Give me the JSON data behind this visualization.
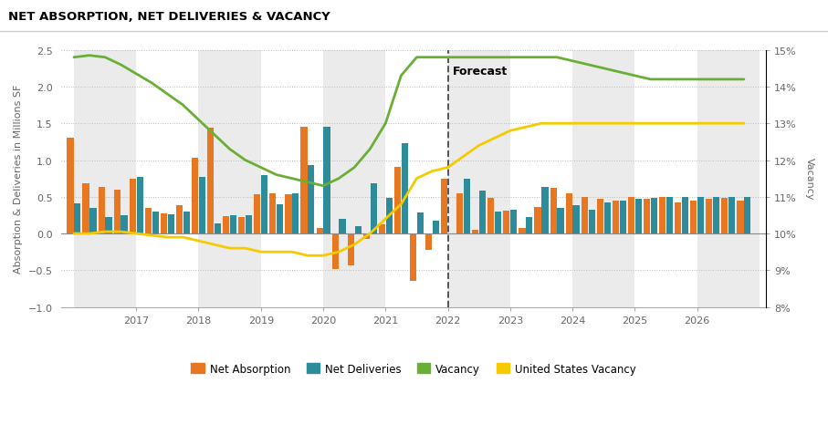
{
  "title": "NET ABSORPTION, NET DELIVERIES & VACANCY",
  "ylabel_left": "Absorption & Deliveries in Millions SF",
  "ylabel_right": "Vacancy",
  "ylim_left": [
    -1.0,
    2.5
  ],
  "ylim_right": [
    0.08,
    0.15
  ],
  "background_color": "#ffffff",
  "stripe_color": "#ebebeb",
  "forecast_x": 2022.0,
  "quarters": [
    2016.0,
    2016.25,
    2016.5,
    2016.75,
    2017.0,
    2017.25,
    2017.5,
    2017.75,
    2018.0,
    2018.25,
    2018.5,
    2018.75,
    2019.0,
    2019.25,
    2019.5,
    2019.75,
    2020.0,
    2020.25,
    2020.5,
    2020.75,
    2021.0,
    2021.25,
    2021.5,
    2021.75,
    2022.0,
    2022.25,
    2022.5,
    2022.75,
    2023.0,
    2023.25,
    2023.5,
    2023.75,
    2024.0,
    2024.25,
    2024.5,
    2024.75,
    2025.0,
    2025.25,
    2025.5,
    2025.75,
    2026.0,
    2026.25,
    2026.5,
    2026.75
  ],
  "net_absorption": [
    1.3,
    0.68,
    0.63,
    0.6,
    0.75,
    0.35,
    0.27,
    0.38,
    1.03,
    1.44,
    0.24,
    0.23,
    0.53,
    0.55,
    0.53,
    1.45,
    0.07,
    -0.48,
    -0.44,
    -0.07,
    0.12,
    0.91,
    -0.64,
    -0.22,
    0.75,
    0.55,
    0.05,
    0.49,
    0.31,
    0.07,
    0.36,
    0.62,
    0.55,
    0.5,
    0.47,
    0.45,
    0.5,
    0.47,
    0.5,
    0.42,
    0.45,
    0.47,
    0.48,
    0.45
  ],
  "net_deliveries": [
    0.41,
    0.35,
    0.23,
    0.25,
    0.77,
    0.3,
    0.26,
    0.3,
    0.77,
    0.14,
    0.25,
    0.25,
    0.8,
    0.4,
    0.55,
    0.93,
    1.45,
    0.2,
    0.1,
    0.68,
    0.48,
    1.23,
    0.28,
    0.18,
    0.0,
    0.75,
    0.58,
    0.3,
    0.32,
    0.22,
    0.63,
    0.35,
    0.38,
    0.32,
    0.42,
    0.45,
    0.47,
    0.48,
    0.5,
    0.5,
    0.5,
    0.5,
    0.5,
    0.5
  ],
  "vacancy_y": [
    0.148,
    0.1485,
    0.148,
    0.146,
    0.1435,
    0.141,
    0.138,
    0.135,
    0.131,
    0.127,
    0.123,
    0.12,
    0.118,
    0.116,
    0.115,
    0.114,
    0.113,
    0.115,
    0.118,
    0.123,
    0.13,
    0.143,
    0.148,
    0.148,
    0.148,
    0.148,
    0.148,
    0.148,
    0.148,
    0.148,
    0.148,
    0.148,
    0.147,
    0.146,
    0.145,
    0.144,
    0.143,
    0.142,
    0.142,
    0.142,
    0.142,
    0.142,
    0.142,
    0.142
  ],
  "us_vacancy_y": [
    0.1,
    0.1,
    0.1005,
    0.1005,
    0.1,
    0.0995,
    0.099,
    0.099,
    0.098,
    0.097,
    0.096,
    0.096,
    0.095,
    0.095,
    0.095,
    0.094,
    0.094,
    0.095,
    0.097,
    0.1,
    0.104,
    0.108,
    0.115,
    0.117,
    0.118,
    0.121,
    0.124,
    0.126,
    0.128,
    0.129,
    0.13,
    0.13,
    0.13,
    0.13,
    0.13,
    0.13,
    0.13,
    0.13,
    0.13,
    0.13,
    0.13,
    0.13,
    0.13,
    0.13
  ],
  "bar_width": 0.105,
  "absorption_color": "#E87722",
  "deliveries_color": "#2E8B9A",
  "vacancy_color": "#6AAF35",
  "us_vacancy_color": "#F5CB00",
  "stripe_years": [
    2016,
    2018,
    2020,
    2022,
    2024,
    2026
  ],
  "xlim": [
    2015.8,
    2027.1
  ],
  "xticks": [
    2017,
    2018,
    2019,
    2020,
    2021,
    2022,
    2023,
    2024,
    2025,
    2026
  ],
  "yticks_left": [
    -1.0,
    -0.5,
    0.0,
    0.5,
    1.0,
    1.5,
    2.0,
    2.5
  ],
  "yticks_right": [
    0.08,
    0.09,
    0.1,
    0.11,
    0.12,
    0.13,
    0.14,
    0.15
  ],
  "ytick_labels_right": [
    "8%",
    "9%",
    "10%",
    "11%",
    "12%",
    "13%",
    "14%",
    "15%"
  ]
}
